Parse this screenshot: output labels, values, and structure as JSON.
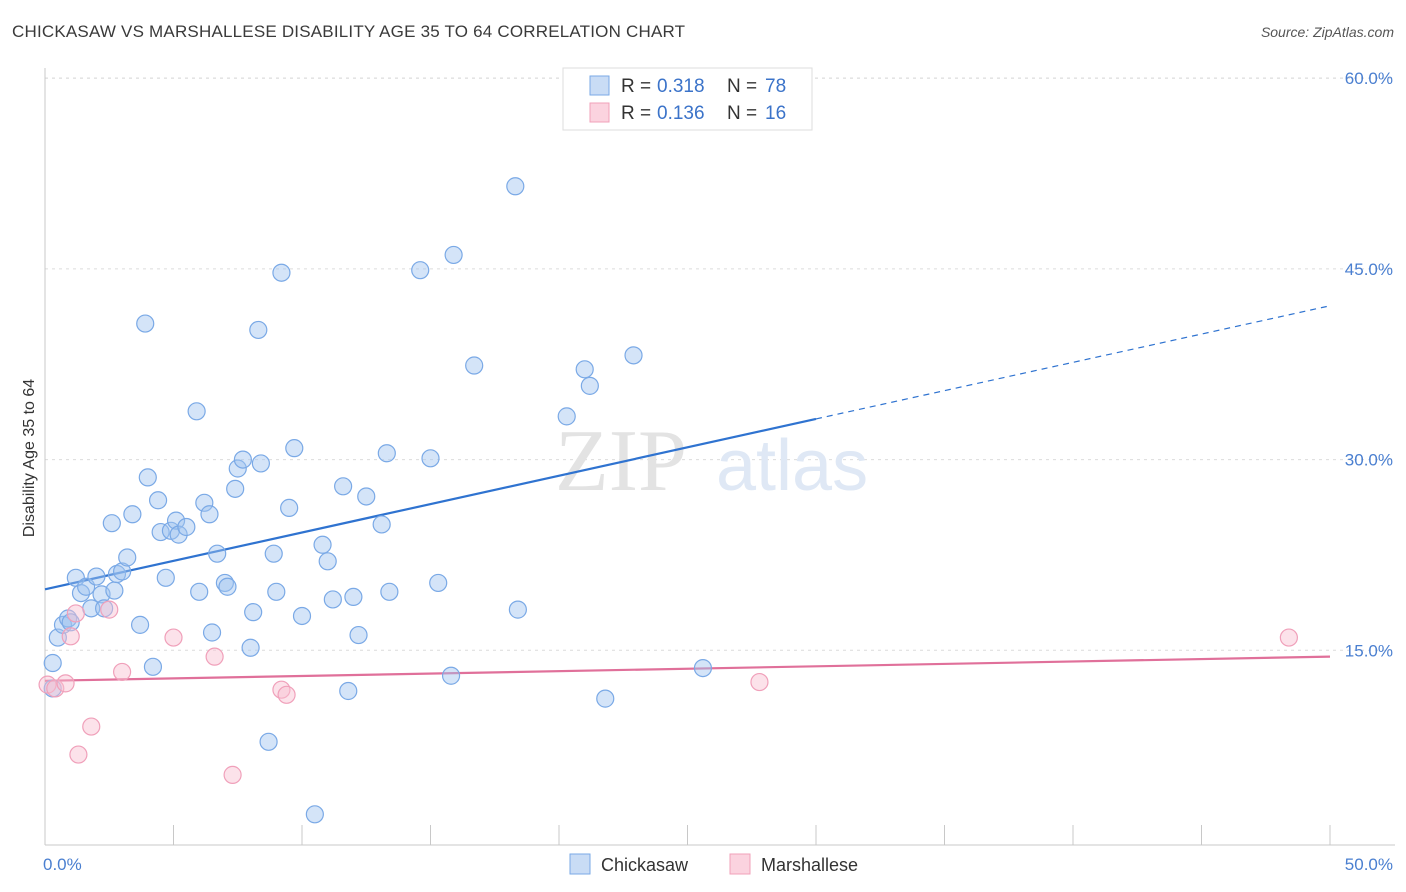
{
  "title": "CHICKASAW VS MARSHALLESE DISABILITY AGE 35 TO 64 CORRELATION CHART",
  "source": "Source: ZipAtlas.com",
  "chart_data": {
    "type": "scatter",
    "ylabel": "Disability Age 35 to 64",
    "xlim": [
      0,
      50
    ],
    "ylim": [
      0,
      60
    ],
    "x_tick_labels": [
      "0.0%",
      "50.0%"
    ],
    "y_ticks": [
      15,
      30,
      45,
      60
    ],
    "y_tick_labels": [
      "15.0%",
      "30.0%",
      "45.0%",
      "60.0%"
    ],
    "grid": true,
    "legend_placement": "top-center",
    "watermark": "ZIPatlas",
    "legend": [
      {
        "r_label": "R =",
        "r": "0.318",
        "n_label": "N =",
        "n": "78"
      },
      {
        "r_label": "R =",
        "r": "0.136",
        "n_label": "N =",
        "n": "16"
      }
    ],
    "series": [
      {
        "name": "Chickasaw",
        "color": "#7aa9e6",
        "line_color": "#2f73d0",
        "trend": {
          "x0": 0,
          "y0": 19.8,
          "x1": 30,
          "y1": 33.2,
          "x_ext": 50,
          "y_ext": 42.1
        },
        "points": [
          [
            0.3,
            12.0
          ],
          [
            0.3,
            14.0
          ],
          [
            0.5,
            16.0
          ],
          [
            0.7,
            17.0
          ],
          [
            0.9,
            17.5
          ],
          [
            1.0,
            17.2
          ],
          [
            1.2,
            20.7
          ],
          [
            1.4,
            19.5
          ],
          [
            1.6,
            20.0
          ],
          [
            1.8,
            18.3
          ],
          [
            2.0,
            20.8
          ],
          [
            2.2,
            19.4
          ],
          [
            2.3,
            18.3
          ],
          [
            2.6,
            25.0
          ],
          [
            2.7,
            19.7
          ],
          [
            2.8,
            21.0
          ],
          [
            3.0,
            21.2
          ],
          [
            3.2,
            22.3
          ],
          [
            3.4,
            25.7
          ],
          [
            3.7,
            17.0
          ],
          [
            3.9,
            40.7
          ],
          [
            4.0,
            28.6
          ],
          [
            4.2,
            13.7
          ],
          [
            4.4,
            26.8
          ],
          [
            4.5,
            24.3
          ],
          [
            4.7,
            20.7
          ],
          [
            4.9,
            24.4
          ],
          [
            5.1,
            25.2
          ],
          [
            5.2,
            24.1
          ],
          [
            5.5,
            24.7
          ],
          [
            5.9,
            33.8
          ],
          [
            6.0,
            19.6
          ],
          [
            6.2,
            26.6
          ],
          [
            6.4,
            25.7
          ],
          [
            6.5,
            16.4
          ],
          [
            6.7,
            22.6
          ],
          [
            7.0,
            20.3
          ],
          [
            7.1,
            20.0
          ],
          [
            7.4,
            27.7
          ],
          [
            7.5,
            29.3
          ],
          [
            7.7,
            30.0
          ],
          [
            8.0,
            15.2
          ],
          [
            8.1,
            18.0
          ],
          [
            8.3,
            40.2
          ],
          [
            8.4,
            29.7
          ],
          [
            8.7,
            7.8
          ],
          [
            8.9,
            22.6
          ],
          [
            9.0,
            19.6
          ],
          [
            9.2,
            44.7
          ],
          [
            9.5,
            26.2
          ],
          [
            9.7,
            30.9
          ],
          [
            10.0,
            17.7
          ],
          [
            10.5,
            2.1
          ],
          [
            10.8,
            23.3
          ],
          [
            11.0,
            22.0
          ],
          [
            11.2,
            19.0
          ],
          [
            11.6,
            27.9
          ],
          [
            11.8,
            11.8
          ],
          [
            12.0,
            19.2
          ],
          [
            12.2,
            16.2
          ],
          [
            12.5,
            27.1
          ],
          [
            13.1,
            24.9
          ],
          [
            13.3,
            30.5
          ],
          [
            13.4,
            19.6
          ],
          [
            14.6,
            44.9
          ],
          [
            15.0,
            30.1
          ],
          [
            15.3,
            20.3
          ],
          [
            15.8,
            13.0
          ],
          [
            15.9,
            46.1
          ],
          [
            16.7,
            37.4
          ],
          [
            18.3,
            51.5
          ],
          [
            18.4,
            18.2
          ],
          [
            20.3,
            33.4
          ],
          [
            21.0,
            37.1
          ],
          [
            21.2,
            35.8
          ],
          [
            21.8,
            11.2
          ],
          [
            22.9,
            38.2
          ],
          [
            25.6,
            13.6
          ]
        ]
      },
      {
        "name": "Marshallese",
        "color": "#f0a0ba",
        "line_color": "#e0709a",
        "trend": {
          "x0": 0,
          "y0": 12.6,
          "x1": 50,
          "y1": 14.5
        },
        "points": [
          [
            0.1,
            12.3
          ],
          [
            0.4,
            12.0
          ],
          [
            0.8,
            12.4
          ],
          [
            1.0,
            16.1
          ],
          [
            1.2,
            17.9
          ],
          [
            1.3,
            6.8
          ],
          [
            1.8,
            9.0
          ],
          [
            2.5,
            18.2
          ],
          [
            3.0,
            13.3
          ],
          [
            5.0,
            16.0
          ],
          [
            6.6,
            14.5
          ],
          [
            7.3,
            5.2
          ],
          [
            9.2,
            11.9
          ],
          [
            9.4,
            11.5
          ],
          [
            27.8,
            12.5
          ],
          [
            48.4,
            16.0
          ]
        ]
      }
    ]
  }
}
